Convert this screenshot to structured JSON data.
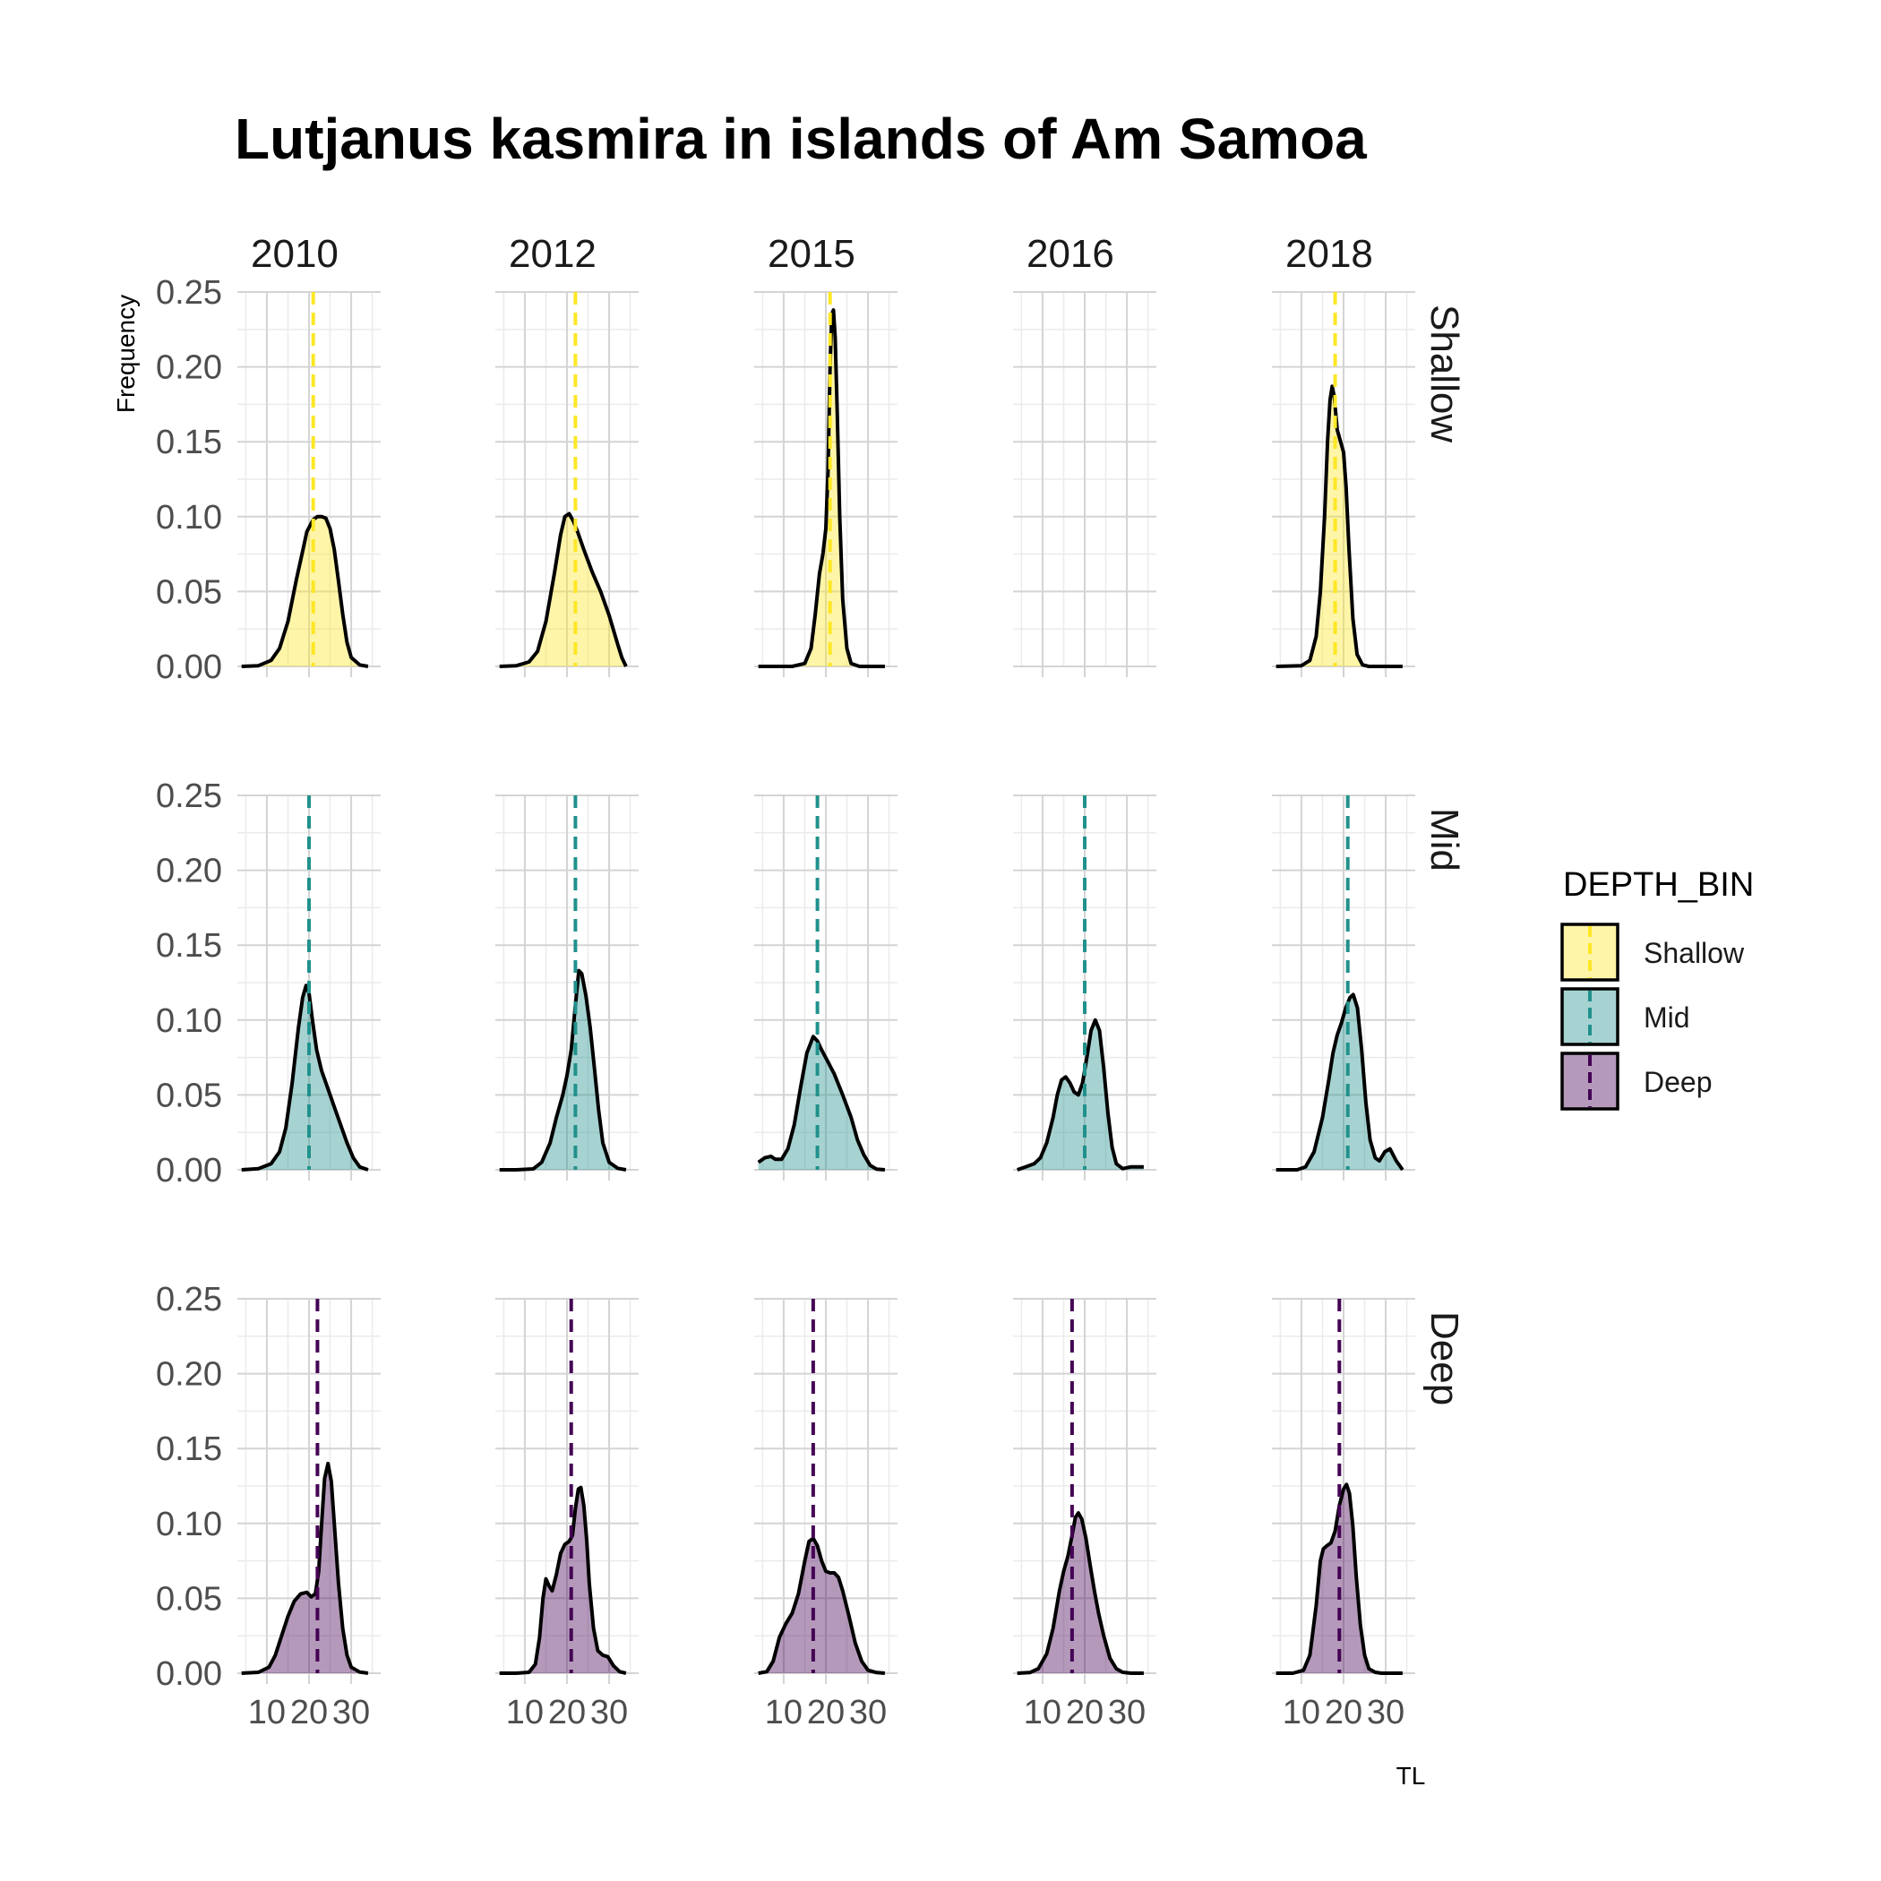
{
  "chart_data": {
    "type": "area",
    "subtype": "faceted density plot",
    "title": "Lutjanus kasmira in islands of Am Samoa",
    "xlabel": "TL",
    "ylabel": "Frequency",
    "xlim": [
      3,
      37
    ],
    "ylim": [
      0,
      0.25
    ],
    "x_ticks": [
      10,
      20,
      30
    ],
    "y_ticks": [
      0,
      0.05,
      0.1,
      0.15,
      0.2,
      0.25
    ],
    "y_tick_labels": [
      "0.00",
      "0.05",
      "0.10",
      "0.15",
      "0.20",
      "0.25"
    ],
    "x_tick_labels": [
      "10",
      "20",
      "30"
    ],
    "grid": true,
    "columns": [
      "2010",
      "2012",
      "2015",
      "2016",
      "2018"
    ],
    "rows": [
      "Shallow",
      "Mid",
      "Deep"
    ],
    "legend": {
      "title": "DEPTH_BIN",
      "position": "right",
      "items": [
        {
          "label": "Shallow",
          "fill": "#fde725",
          "line": "#fde725"
        },
        {
          "label": "Mid",
          "fill": "#21918c",
          "line": "#21918c"
        },
        {
          "label": "Deep",
          "fill": "#440154",
          "line": "#440154"
        }
      ]
    },
    "fill_opacity": 0.4,
    "mean_line_style": "dashed",
    "colors": {
      "Shallow": "#fde725",
      "Mid": "#21918c",
      "Deep": "#440154"
    },
    "panels": [
      {
        "year": "2010",
        "depth": "Shallow",
        "mean": 21,
        "x": [
          4,
          8,
          11,
          13,
          15,
          17,
          18.5,
          19.5,
          21,
          22,
          23,
          24,
          25,
          26,
          27,
          28,
          29,
          30,
          32,
          34
        ],
        "y": [
          0,
          0.0005,
          0.004,
          0.012,
          0.03,
          0.058,
          0.077,
          0.09,
          0.098,
          0.1,
          0.1,
          0.099,
          0.092,
          0.078,
          0.057,
          0.035,
          0.016,
          0.006,
          0.001,
          0
        ]
      },
      {
        "year": "2012",
        "depth": "Shallow",
        "mean": 22,
        "x": [
          4,
          8,
          11,
          13,
          15,
          17,
          18.5,
          19.5,
          20.5,
          21.5,
          22.5,
          24,
          26,
          28,
          30,
          32,
          33,
          34
        ],
        "y": [
          0,
          0.0005,
          0.003,
          0.01,
          0.03,
          0.062,
          0.088,
          0.1,
          0.102,
          0.097,
          0.09,
          0.078,
          0.063,
          0.05,
          0.034,
          0.015,
          0.006,
          0
        ]
      },
      {
        "year": "2015",
        "depth": "Shallow",
        "mean": 21,
        "x": [
          4,
          12,
          15,
          16.5,
          17.5,
          18.5,
          19.3,
          20,
          20.5,
          21,
          21.4,
          21.8,
          22.2,
          22.7,
          23.3,
          24,
          25,
          26,
          28,
          34
        ],
        "y": [
          0,
          0,
          0.002,
          0.012,
          0.035,
          0.062,
          0.075,
          0.092,
          0.13,
          0.2,
          0.235,
          0.238,
          0.22,
          0.17,
          0.1,
          0.045,
          0.012,
          0.002,
          0,
          0
        ]
      },
      {
        "year": "2016",
        "depth": "Shallow",
        "mean": null,
        "x": [],
        "y": []
      },
      {
        "year": "2018",
        "depth": "Shallow",
        "mean": 18,
        "x": [
          4,
          10,
          12,
          13.5,
          14.5,
          15.5,
          16.2,
          16.8,
          17.3,
          17.8,
          18.5,
          19.3,
          20,
          20.6,
          21.3,
          22.2,
          23.2,
          24.5,
          26,
          34
        ],
        "y": [
          0,
          0.0005,
          0.004,
          0.02,
          0.05,
          0.1,
          0.15,
          0.178,
          0.187,
          0.18,
          0.158,
          0.15,
          0.143,
          0.12,
          0.078,
          0.032,
          0.008,
          0.001,
          0,
          0
        ]
      },
      {
        "year": "2010",
        "depth": "Mid",
        "mean": 20,
        "x": [
          4,
          8,
          11,
          13,
          14.5,
          16,
          17.5,
          18.5,
          19.3,
          20,
          20.8,
          21.8,
          23,
          24.5,
          26,
          27.5,
          29,
          30.5,
          32,
          34
        ],
        "y": [
          0,
          0.0008,
          0.004,
          0.012,
          0.028,
          0.058,
          0.095,
          0.115,
          0.123,
          0.118,
          0.1,
          0.08,
          0.066,
          0.054,
          0.042,
          0.03,
          0.018,
          0.008,
          0.002,
          0
        ]
      },
      {
        "year": "2012",
        "depth": "Mid",
        "mean": 22,
        "x": [
          4,
          8,
          12,
          14,
          16,
          17.5,
          19,
          20,
          21,
          22,
          22.8,
          23.5,
          24.5,
          25.5,
          26.5,
          27.5,
          28.5,
          30,
          32,
          34
        ],
        "y": [
          0,
          0,
          0.0006,
          0.005,
          0.018,
          0.035,
          0.05,
          0.063,
          0.08,
          0.11,
          0.133,
          0.131,
          0.116,
          0.095,
          0.068,
          0.04,
          0.018,
          0.005,
          0.001,
          0
        ]
      },
      {
        "year": "2015",
        "depth": "Mid",
        "mean": 18,
        "x": [
          4,
          5.5,
          7,
          8,
          9.5,
          11,
          12.5,
          14,
          15.5,
          17,
          18,
          19,
          20.5,
          22,
          24,
          26,
          27.5,
          29,
          30.5,
          32,
          34
        ],
        "y": [
          0.005,
          0.008,
          0.009,
          0.007,
          0.007,
          0.014,
          0.03,
          0.055,
          0.078,
          0.089,
          0.086,
          0.08,
          0.072,
          0.064,
          0.05,
          0.035,
          0.02,
          0.01,
          0.003,
          0.0005,
          0
        ]
      },
      {
        "year": "2016",
        "depth": "Mid",
        "mean": 20,
        "x": [
          4,
          6,
          8,
          9.5,
          11,
          12.5,
          13.5,
          14.5,
          15.5,
          16.5,
          17.5,
          18.5,
          19.5,
          20.5,
          21.5,
          22.5,
          23.5,
          24.5,
          25.5,
          26.5,
          27.5,
          29,
          31,
          34
        ],
        "y": [
          0,
          0.002,
          0.004,
          0.008,
          0.018,
          0.035,
          0.05,
          0.06,
          0.062,
          0.058,
          0.052,
          0.05,
          0.058,
          0.075,
          0.093,
          0.1,
          0.093,
          0.068,
          0.038,
          0.015,
          0.004,
          0.0008,
          0.002,
          0.002
        ]
      },
      {
        "year": "2018",
        "depth": "Mid",
        "mean": 21,
        "x": [
          4,
          9,
          11,
          13,
          15,
          16.5,
          17.5,
          18.5,
          19.5,
          20.5,
          21.5,
          22.3,
          23.3,
          24.3,
          25.3,
          26.3,
          27.5,
          28.5,
          29.8,
          31,
          32.5,
          34
        ],
        "y": [
          0,
          0,
          0.002,
          0.012,
          0.035,
          0.06,
          0.078,
          0.09,
          0.098,
          0.108,
          0.115,
          0.117,
          0.108,
          0.08,
          0.045,
          0.02,
          0.008,
          0.006,
          0.012,
          0.014,
          0.006,
          0
        ]
      },
      {
        "year": "2010",
        "depth": "Deep",
        "mean": 22,
        "x": [
          4,
          8,
          10.5,
          12,
          13.5,
          15,
          16.5,
          18,
          19.5,
          20.5,
          21.5,
          22.3,
          23,
          23.7,
          24.5,
          25.3,
          26,
          27,
          28,
          29,
          30,
          32,
          34
        ],
        "y": [
          0,
          0.0006,
          0.004,
          0.012,
          0.025,
          0.038,
          0.048,
          0.053,
          0.054,
          0.051,
          0.053,
          0.068,
          0.1,
          0.13,
          0.14,
          0.128,
          0.1,
          0.06,
          0.03,
          0.012,
          0.004,
          0.0008,
          0
        ]
      },
      {
        "year": "2012",
        "depth": "Deep",
        "mean": 21,
        "x": [
          4,
          8,
          11,
          12.5,
          13.5,
          14.3,
          15,
          15.8,
          16.5,
          17.5,
          18.5,
          19.5,
          20.5,
          21.3,
          22,
          22.7,
          23.3,
          24,
          24.7,
          25.3,
          26.3,
          27.3,
          28.5,
          29.7,
          31,
          32.5,
          34
        ],
        "y": [
          0,
          0,
          0.0006,
          0.006,
          0.024,
          0.05,
          0.063,
          0.058,
          0.055,
          0.066,
          0.08,
          0.086,
          0.088,
          0.092,
          0.11,
          0.123,
          0.124,
          0.112,
          0.088,
          0.06,
          0.03,
          0.015,
          0.012,
          0.011,
          0.005,
          0.001,
          0
        ]
      },
      {
        "year": "2015",
        "depth": "Deep",
        "mean": 17,
        "x": [
          4,
          6,
          7.5,
          9,
          10.5,
          12,
          13.5,
          15,
          16,
          17,
          18,
          19,
          20,
          21,
          22,
          23,
          24,
          25.5,
          27,
          28.5,
          30,
          32,
          34
        ],
        "y": [
          0,
          0.001,
          0.008,
          0.024,
          0.033,
          0.04,
          0.053,
          0.075,
          0.088,
          0.09,
          0.085,
          0.075,
          0.068,
          0.067,
          0.067,
          0.064,
          0.055,
          0.038,
          0.02,
          0.008,
          0.002,
          0.0004,
          0
        ]
      },
      {
        "year": "2016",
        "depth": "Deep",
        "mean": 17,
        "x": [
          4,
          7,
          9,
          11,
          12.5,
          14,
          15,
          16,
          17,
          17.8,
          18.5,
          19.3,
          20.3,
          21.3,
          22.3,
          23.3,
          24.5,
          26,
          27.5,
          29,
          31,
          34
        ],
        "y": [
          0,
          0.0004,
          0.003,
          0.013,
          0.03,
          0.055,
          0.068,
          0.078,
          0.092,
          0.104,
          0.107,
          0.103,
          0.09,
          0.072,
          0.055,
          0.04,
          0.025,
          0.01,
          0.003,
          0.0006,
          0,
          0
        ]
      },
      {
        "year": "2018",
        "depth": "Deep",
        "mean": 19,
        "x": [
          4,
          8,
          10.5,
          12,
          13.5,
          14.5,
          15.2,
          16,
          17,
          18,
          19,
          20,
          20.7,
          21.4,
          22.2,
          23,
          24,
          25,
          26,
          27.5,
          29,
          34
        ],
        "y": [
          0,
          0,
          0.002,
          0.012,
          0.045,
          0.075,
          0.083,
          0.085,
          0.087,
          0.095,
          0.112,
          0.123,
          0.126,
          0.12,
          0.098,
          0.065,
          0.032,
          0.012,
          0.003,
          0.0006,
          0,
          0
        ]
      }
    ]
  }
}
